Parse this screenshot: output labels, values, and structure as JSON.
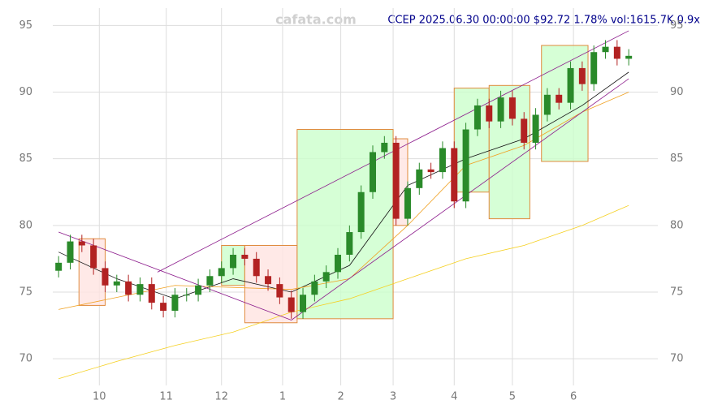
{
  "chart_data": {
    "type": "candlestick",
    "watermark": "cafata.com",
    "title": "CCEP 2025.06.30 00:00:00 $92.72 1.78% vol:1615.7K 0.9x",
    "xlim": [
      -2,
      206
    ],
    "ylim": [
      68,
      96.3
    ],
    "xticks": [
      {
        "value": 14,
        "label": "10"
      },
      {
        "value": 37,
        "label": "11"
      },
      {
        "value": 56,
        "label": "12"
      },
      {
        "value": 77,
        "label": "1"
      },
      {
        "value": 97,
        "label": "2"
      },
      {
        "value": 115,
        "label": "3"
      },
      {
        "value": 136,
        "label": "4"
      },
      {
        "value": 156,
        "label": "5"
      },
      {
        "value": 177,
        "label": "6"
      }
    ],
    "yticks": [
      70,
      75,
      80,
      85,
      90,
      95
    ],
    "grid": true,
    "x": [
      0,
      4,
      8,
      12,
      16,
      20,
      24,
      28,
      32,
      36,
      40,
      44,
      48,
      52,
      56,
      60,
      64,
      68,
      72,
      76,
      80,
      84,
      88,
      92,
      96,
      100,
      104,
      108,
      112,
      116,
      120,
      124,
      128,
      132,
      136,
      140,
      144,
      148,
      152,
      156,
      160,
      164,
      168,
      172,
      176,
      180,
      184,
      188,
      192,
      196
    ],
    "open": [
      76.6,
      77.2,
      78.8,
      78.5,
      76.8,
      75.5,
      75.8,
      74.8,
      75.6,
      74.2,
      73.6,
      74.8,
      74.8,
      75.5,
      76.2,
      76.8,
      77.8,
      77.5,
      76.2,
      75.6,
      74.6,
      73.5,
      74.8,
      75.8,
      76.5,
      77.8,
      79.5,
      82.5,
      85.5,
      86.2,
      80.5,
      82.8,
      84.2,
      84.0,
      85.8,
      81.8,
      87.2,
      89.0,
      87.8,
      89.6,
      88.0,
      86.2,
      88.3,
      89.8,
      89.2,
      91.8,
      90.6,
      93.0,
      93.4,
      92.5
    ],
    "high": [
      77.7,
      79.3,
      79.3,
      79.0,
      77.3,
      76.3,
      76.3,
      76.1,
      76.1,
      74.7,
      75.3,
      75.3,
      76.0,
      76.7,
      77.3,
      78.3,
      78.3,
      78.0,
      76.7,
      76.1,
      75.1,
      75.3,
      76.3,
      77.0,
      78.3,
      80.0,
      83.0,
      86.0,
      86.7,
      86.7,
      83.3,
      84.7,
      84.7,
      86.3,
      86.3,
      87.7,
      89.5,
      89.5,
      90.1,
      90.1,
      88.5,
      88.8,
      90.3,
      90.3,
      92.3,
      92.3,
      93.5,
      93.9,
      93.9,
      93.22
    ],
    "low": [
      76.1,
      76.7,
      78.0,
      76.3,
      75.0,
      75.0,
      74.3,
      74.3,
      73.7,
      73.1,
      73.1,
      74.3,
      74.3,
      75.0,
      75.7,
      76.3,
      77.0,
      75.7,
      75.1,
      74.1,
      73.0,
      73.0,
      74.3,
      75.3,
      76.0,
      77.3,
      79.0,
      82.0,
      85.0,
      80.0,
      80.0,
      82.3,
      83.5,
      83.5,
      81.3,
      81.3,
      86.7,
      87.3,
      87.3,
      87.5,
      85.7,
      85.7,
      87.8,
      88.7,
      88.7,
      90.1,
      90.1,
      92.5,
      92.0,
      92.0
    ],
    "close": [
      77.2,
      78.8,
      78.5,
      76.8,
      75.5,
      75.8,
      74.8,
      75.6,
      74.2,
      73.6,
      74.8,
      74.8,
      75.5,
      76.2,
      76.8,
      77.8,
      77.5,
      76.2,
      75.6,
      74.6,
      73.5,
      74.8,
      75.8,
      76.5,
      77.8,
      79.5,
      82.5,
      85.5,
      86.2,
      80.5,
      82.8,
      84.2,
      84.0,
      85.8,
      81.8,
      87.2,
      89.0,
      87.8,
      89.6,
      88.0,
      86.2,
      88.3,
      89.8,
      89.2,
      91.8,
      90.6,
      93.0,
      93.4,
      92.5,
      92.72
    ],
    "up_color": "#2a8a2a",
    "down_color": "#b22222",
    "lines": [
      {
        "color": "#111111",
        "x": [
          0,
          20,
          40,
          60,
          80,
          100,
          120,
          140,
          160,
          180,
          196
        ],
        "values": [
          78,
          76,
          74.5,
          76,
          75,
          77,
          83,
          85,
          86.5,
          89,
          91.5
        ]
      },
      {
        "color": "#f0a020",
        "x": [
          0,
          40,
          80,
          100,
          120,
          140,
          160,
          180,
          196
        ],
        "values": [
          73.7,
          75.5,
          75.2,
          76,
          80,
          84.5,
          86,
          88.5,
          90
        ]
      },
      {
        "color": "#f5d020",
        "x": [
          0,
          20,
          40,
          60,
          80,
          100,
          120,
          140,
          160,
          180,
          196
        ],
        "values": [
          68.5,
          69.8,
          71,
          72,
          73.5,
          74.5,
          76,
          77.5,
          78.5,
          80,
          81.5
        ]
      },
      {
        "color": "#8b1a8b",
        "x": [
          34,
          196
        ],
        "values": [
          76.5,
          94.6
        ]
      },
      {
        "color": "#8b1a8b",
        "x": [
          80,
          196
        ],
        "values": [
          72.9,
          91
        ]
      },
      {
        "color": "#8b1a8b",
        "x": [
          0,
          80
        ],
        "values": [
          79.5,
          72.9
        ]
      }
    ],
    "zones": [
      {
        "color": "#ffe4e1",
        "x": [
          7,
          16
        ],
        "y": [
          74,
          79
        ]
      },
      {
        "color": "#ccffcc",
        "x": [
          56,
          64
        ],
        "y": [
          75.5,
          78.5
        ]
      },
      {
        "color": "#ffe4e1",
        "x": [
          64,
          82
        ],
        "y": [
          72.7,
          78.5
        ]
      },
      {
        "color": "#ccffcc",
        "x": [
          82,
          115
        ],
        "y": [
          73,
          87.2
        ]
      },
      {
        "color": "#ffe4e1",
        "x": [
          115,
          120
        ],
        "y": [
          80,
          86.5
        ]
      },
      {
        "color": "#ccffcc",
        "x": [
          136,
          148
        ],
        "y": [
          82.5,
          90.3
        ]
      },
      {
        "color": "#ccffcc",
        "x": [
          148,
          162
        ],
        "y": [
          80.5,
          90.5
        ]
      },
      {
        "color": "#ccffcc",
        "x": [
          166,
          182
        ],
        "y": [
          84.8,
          93.5
        ]
      }
    ]
  }
}
